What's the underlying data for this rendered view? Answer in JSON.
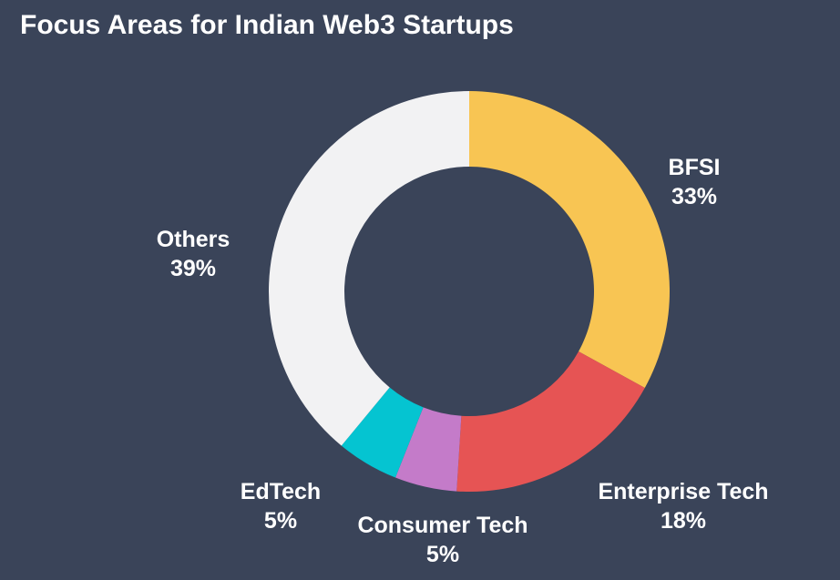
{
  "chart_data": {
    "type": "pie",
    "title": "Focus Areas for Indian Web3 Startups",
    "categories": [
      "BFSI",
      "Enterprise Tech",
      "Consumer Tech",
      "EdTech",
      "Others"
    ],
    "values": [
      33,
      18,
      5,
      5,
      39
    ],
    "value_labels": [
      "33%",
      "18%",
      "5%",
      "5%",
      "39%"
    ],
    "colors": [
      "#f8c553",
      "#e65454",
      "#c47bc9",
      "#05c4d1",
      "#f2f2f3"
    ],
    "donut": true,
    "start_angle": "12 o'clock",
    "direction": "clockwise",
    "legend": "none"
  },
  "style": {
    "background": "#3a4459",
    "title_color": "#ffffff",
    "label_color": "#ffffff"
  }
}
